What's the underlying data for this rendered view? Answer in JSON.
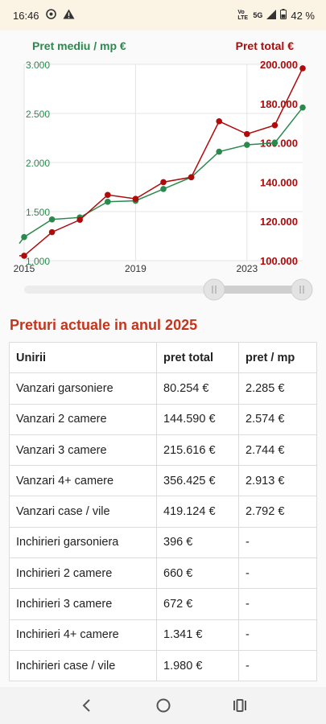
{
  "status": {
    "time": "16:46",
    "network": "5G",
    "lte": "Vo LTE",
    "battery": "42 %",
    "icons": [
      "chrome-icon",
      "warning-icon",
      "volte-icon",
      "signal-icon",
      "battery-icon"
    ]
  },
  "colors": {
    "green": "#2a8a4e",
    "red": "#b00a0a",
    "title_red": "#c4351d"
  },
  "chart_data": {
    "type": "line",
    "left_axis_title": "Pret mediu / mp €",
    "right_axis_title": "Pret total €",
    "x": [
      2015,
      2016,
      2017,
      2018,
      2019,
      2020,
      2021,
      2022,
      2023,
      2024,
      2025
    ],
    "x_ticks": [
      "2015",
      "2019",
      "2023"
    ],
    "ylim_left": [
      1000,
      3000
    ],
    "ylim_right": [
      100000,
      200000
    ],
    "y_ticks_left": [
      "1.000",
      "1.500",
      "2.000",
      "2.500",
      "3.000"
    ],
    "y_ticks_right": [
      "100.000",
      "120.000",
      "140.000",
      "160.000",
      "180.000",
      "200.000"
    ],
    "grid": true,
    "series": [
      {
        "name": "Pret mediu / mp €",
        "axis": "left",
        "color": "#2a8a4e",
        "values": [
          1240,
          1420,
          1440,
          1600,
          1610,
          1730,
          1850,
          2110,
          2180,
          2200,
          2560
        ]
      },
      {
        "name": "Pret total €",
        "axis": "right",
        "color": "#b00a0a",
        "values": [
          102500,
          114500,
          120800,
          133500,
          131500,
          140000,
          142500,
          171000,
          164500,
          169000,
          198000
        ]
      }
    ]
  },
  "slider": {
    "left_handle_icon": "slider-handle-icon",
    "right_handle_icon": "slider-handle-icon"
  },
  "section": {
    "title": "Preturi actuale in anul 2025"
  },
  "table": {
    "headers": [
      "Unirii",
      "pret total",
      "pret / mp"
    ],
    "rows": [
      [
        "Vanzari garsoniere",
        "80.254 €",
        "2.285 €"
      ],
      [
        "Vanzari 2 camere",
        "144.590 €",
        "2.574 €"
      ],
      [
        "Vanzari 3 camere",
        "215.616 €",
        "2.744 €"
      ],
      [
        "Vanzari 4+ camere",
        "356.425 €",
        "2.913 €"
      ],
      [
        "Vanzari case / vile",
        "419.124 €",
        "2.792 €"
      ],
      [
        "Inchirieri garsoniera",
        "396 €",
        "-"
      ],
      [
        "Inchirieri 2 camere",
        "660 €",
        "-"
      ],
      [
        "Inchirieri 3 camere",
        "672 €",
        "-"
      ],
      [
        "Inchirieri 4+ camere",
        "1.341 €",
        "-"
      ],
      [
        "Inchirieri case / vile",
        "1.980 €",
        "-"
      ]
    ]
  },
  "nav": {
    "icons": [
      "back-icon",
      "home-icon",
      "recents-icon"
    ]
  }
}
